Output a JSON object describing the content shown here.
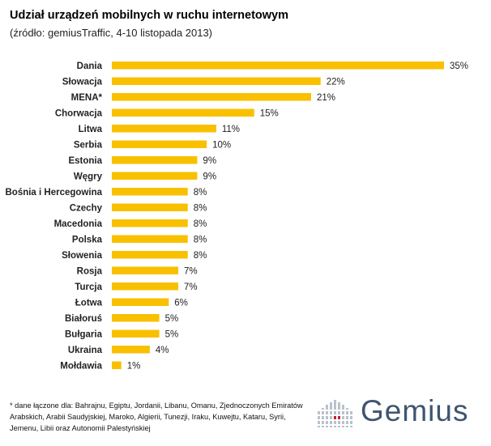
{
  "title": "Udział urządzeń mobilnych w ruchu internetowym",
  "subtitle": "(źródło: gemiusTraffic, 4-10 listopada 2013)",
  "footnote": "* dane łączone dla: Bahrajnu, Egiptu, Jordanii, Libanu, Omanu, Zjednoczonych Emiratów Arabskich, Arabii Saudyjskiej, Maroko, Algierii, Tunezji, Iraku, Kuwejtu, Kataru, Syrii, Jemenu, Libii oraz Autonomii Palestyńskiej",
  "logo": {
    "text": "Gemius"
  },
  "colors": {
    "bar": "#f9c000",
    "logo_text": "#3e5570",
    "logo_accent": "#c5202f"
  },
  "chart_data": {
    "type": "bar",
    "orientation": "horizontal",
    "categories": [
      "Dania",
      "Słowacja",
      "MENA*",
      "Chorwacja",
      "Litwa",
      "Serbia",
      "Estonia",
      "Węgry",
      "Bośnia i Hercegowina",
      "Czechy",
      "Macedonia",
      "Polska",
      "Słowenia",
      "Rosja",
      "Turcja",
      "Łotwa",
      "Białoruś",
      "Bułgaria",
      "Ukraina",
      "Mołdawia"
    ],
    "values": [
      35,
      22,
      21,
      15,
      11,
      10,
      9,
      9,
      8,
      8,
      8,
      8,
      8,
      7,
      7,
      6,
      5,
      5,
      4,
      1
    ],
    "labels": [
      "35%",
      "22%",
      "21%",
      "15%",
      "11%",
      "10%",
      "9%",
      "9%",
      "8%",
      "8%",
      "8%",
      "8%",
      "8%",
      "7%",
      "7%",
      "6%",
      "5%",
      "5%",
      "4%",
      "1%"
    ],
    "title": "Udział urządzeń mobilnych w ruchu internetowym",
    "xlabel": "",
    "ylabel": "",
    "xlim": [
      0,
      35
    ],
    "grid": false,
    "legend": "none"
  }
}
